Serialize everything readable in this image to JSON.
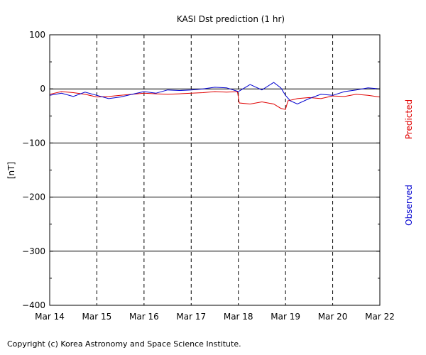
{
  "chart_data": {
    "type": "line",
    "title": "KASI Dst prediction (1 hr)",
    "ylabel": "[nT]",
    "ylim": [
      -400,
      100
    ],
    "yticks": [
      100,
      0,
      -100,
      -200,
      -300,
      -400
    ],
    "ytick_labels": [
      "100",
      "0",
      "−100",
      "−200",
      "−300",
      "−400"
    ],
    "x_days": [
      "Mar 14",
      "Mar 15",
      "Mar 16",
      "Mar 17",
      "Mar 18",
      "Mar 19",
      "Mar 20",
      "Mar 22"
    ],
    "x_day_positions": [
      0,
      1,
      2,
      3,
      4,
      5,
      6,
      7
    ],
    "xlim": [
      0,
      7
    ],
    "grid": "dashed vertical at day boundaries, solid horizontal at 0, -100, -200, -300",
    "series": [
      {
        "name": "Predicted",
        "color": "#e00000",
        "x": [
          0,
          0.25,
          0.5,
          0.75,
          1.0,
          1.25,
          1.5,
          1.75,
          2.0,
          2.25,
          2.5,
          2.75,
          3.0,
          3.25,
          3.5,
          3.75,
          3.98,
          4.02,
          4.25,
          4.5,
          4.75,
          4.9,
          5.0,
          5.05,
          5.25,
          5.5,
          5.75,
          6.0,
          6.25,
          6.5,
          6.75,
          7.0
        ],
        "values": [
          -10,
          -5,
          -7,
          -10,
          -15,
          -14,
          -12,
          -10,
          -8,
          -9,
          -10,
          -9,
          -8,
          -7,
          -5,
          -6,
          -5,
          -26,
          -28,
          -24,
          -28,
          -36,
          -38,
          -22,
          -18,
          -16,
          -18,
          -13,
          -14,
          -10,
          -12,
          -15
        ]
      },
      {
        "name": "Observed",
        "color": "#0000d0",
        "x": [
          0,
          0.25,
          0.5,
          0.75,
          1.0,
          1.25,
          1.5,
          1.75,
          2.0,
          2.25,
          2.5,
          2.75,
          3.0,
          3.25,
          3.5,
          3.75,
          4.0,
          4.25,
          4.5,
          4.75,
          4.9,
          5.0,
          5.1,
          5.25,
          5.5,
          5.75,
          6.0,
          6.25,
          6.5,
          6.75,
          7.0
        ],
        "values": [
          -12,
          -8,
          -14,
          -6,
          -12,
          -18,
          -15,
          -10,
          -5,
          -8,
          -2,
          -3,
          -2,
          0,
          3,
          2,
          -5,
          8,
          -2,
          12,
          2,
          -12,
          -22,
          -28,
          -18,
          -10,
          -12,
          -5,
          -2,
          2,
          0
        ]
      }
    ]
  },
  "copyright": "Copyright (c) Korea Astronomy and Space Science Institute."
}
